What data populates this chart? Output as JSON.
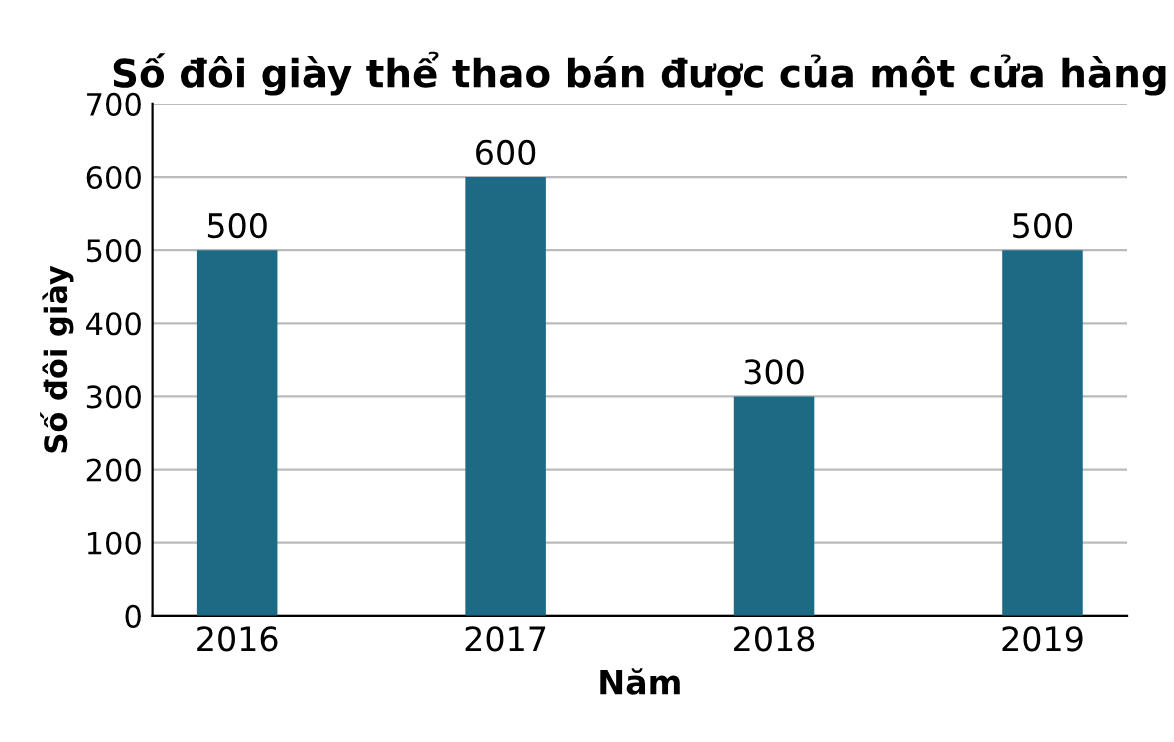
{
  "chart_data": {
    "type": "bar",
    "title": "Số đôi giày thể thao bán được của một cửa hàng",
    "xlabel": "Năm",
    "ylabel": "Số đôi giày",
    "categories": [
      "2016",
      "2017",
      "2018",
      "2019"
    ],
    "values": [
      500,
      600,
      300,
      500
    ],
    "color": "#1d6a85",
    "ylim": [
      0,
      700
    ],
    "yticks": [
      0,
      100,
      200,
      300,
      400,
      500,
      600,
      700
    ],
    "grid": "y",
    "data_labels": true
  }
}
